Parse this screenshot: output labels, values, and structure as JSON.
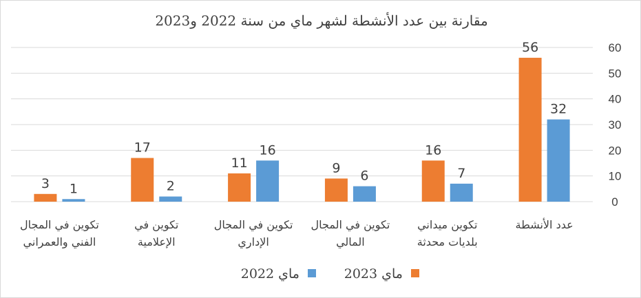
{
  "chart_data": {
    "type": "bar",
    "title": "مقارنة بين عدد الأنشطة لشهر ماي من سنة 2022 و2023",
    "categories": [
      [
        "عدد الأنشطة"
      ],
      [
        "تكوين ميداني",
        "بلديات محدثة"
      ],
      [
        "تكوين في المجال",
        "المالي"
      ],
      [
        "تكوين في المجال",
        "الإداري"
      ],
      [
        "تكوين في",
        "الإعلامية"
      ],
      [
        "تكوين في المجال",
        "الفني والعمراني"
      ]
    ],
    "series": [
      {
        "name": "ماي 2023",
        "color": "#ed7d31",
        "values": [
          56,
          16,
          9,
          11,
          17,
          3
        ]
      },
      {
        "name": "ماي 2022",
        "color": "#5b9bd5",
        "values": [
          32,
          7,
          6,
          16,
          2,
          1
        ]
      }
    ],
    "ylim": [
      0,
      60
    ],
    "yticks": [
      0,
      10,
      20,
      30,
      40,
      50,
      60
    ],
    "y_axis_side": "right",
    "category_order": "right-to-left",
    "grid": true,
    "legend_position": "bottom"
  }
}
